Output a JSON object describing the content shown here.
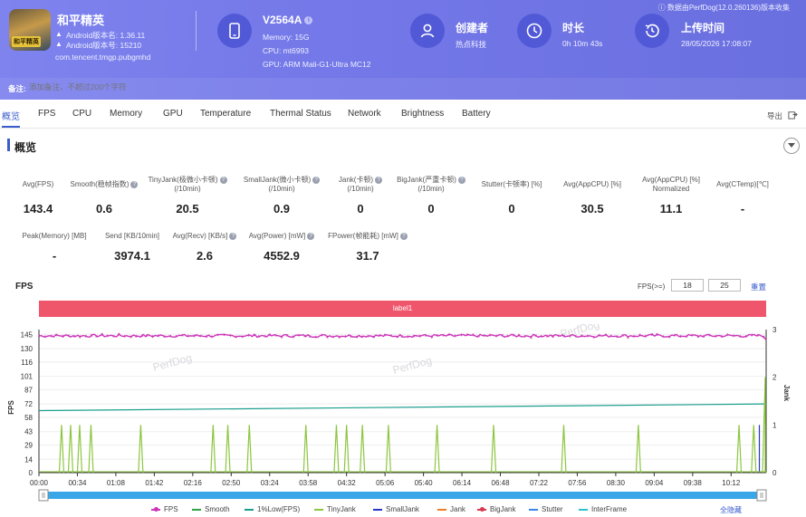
{
  "header": {
    "app_name": "和平精英",
    "android_version": "Android版本名: 1.36.11",
    "android_code": "Android版本号: 15210",
    "package": "com.tencent.tmgp.pubgmhd",
    "icon_badge": "和平精英",
    "device_name": "V2564A",
    "device_memory": "Memory: 15G",
    "device_cpu": "CPU: mt6993",
    "device_gpu": "GPU: ARM Mali-G1-Ultra MC12",
    "creator_label": "创建者",
    "creator_value": "热点科技",
    "duration_label": "时长",
    "duration_value": "0h 10m 43s",
    "upload_label": "上传时间",
    "upload_value": "28/05/2026 17:08:07",
    "data_source": "数据由PerfDog(12.0.260136)版本收集",
    "note_label": "备注:",
    "note_placeholder": "添加备注，不超过200个字符"
  },
  "tabs": [
    "概览",
    "FPS",
    "CPU",
    "Memory",
    "GPU",
    "Temperature",
    "Thermal Status",
    "Network",
    "Brightness",
    "Battery"
  ],
  "export_label": "导出",
  "overview": {
    "title": "概览",
    "row1": [
      {
        "label": "Avg(FPS)",
        "value": "143.4"
      },
      {
        "label": "Smooth(稳帧指数)",
        "value": "0.6"
      },
      {
        "label": "TinyJank(极微小卡顿)\n(/10min)",
        "value": "20.5"
      },
      {
        "label": "SmallJank(微小卡顿)\n(/10min)",
        "value": "0.9"
      },
      {
        "label": "Jank(卡顿)\n(/10min)",
        "value": "0"
      },
      {
        "label": "BigJank(严重卡顿)\n(/10min)",
        "value": "0"
      },
      {
        "label": "Stutter(卡顿率) [%]",
        "value": "0"
      },
      {
        "label": "Avg(AppCPU) [%]",
        "value": "30.5"
      },
      {
        "label": "Avg(AppCPU) [%]\nNormalized",
        "value": "11.1"
      },
      {
        "label": "Avg(CTemp)[℃]",
        "value": "-"
      }
    ],
    "row2": [
      {
        "label": "Peak(Memory) [MB]",
        "value": "-"
      },
      {
        "label": "Send [KB/10min]",
        "value": "3974.1"
      },
      {
        "label": "Avg(Recv) [KB/s]",
        "value": "2.6"
      },
      {
        "label": "Avg(Power) [mW]",
        "value": "4552.9"
      },
      {
        "label": "FPower(帧能耗) [mW]",
        "value": "31.7"
      }
    ]
  },
  "fps_chart_header": {
    "title": "FPS",
    "threshold_label": "FPS(>=)",
    "threshold_1": "18",
    "threshold_2": "25",
    "reset_label": "重置",
    "band_label": "label1"
  },
  "chart_data": {
    "type": "line",
    "title": "FPS",
    "ylabel": "FPS",
    "ylabel_right": "Jank",
    "ylim": [
      0,
      150
    ],
    "ylim_right": [
      0,
      3
    ],
    "y_ticks": [
      0,
      14,
      29,
      43,
      58,
      72,
      87,
      101,
      116,
      130,
      145
    ],
    "y_ticks_right": [
      0,
      1,
      2,
      3
    ],
    "x_ticks": [
      "00:00",
      "00:34",
      "01:08",
      "01:42",
      "02:16",
      "02:50",
      "03:24",
      "03:58",
      "04:32",
      "05:06",
      "05:40",
      "06:14",
      "06:48",
      "07:22",
      "07:56",
      "08:30",
      "09:04",
      "09:38",
      "10:12"
    ],
    "duration_seconds": 643,
    "series": [
      {
        "name": "FPS",
        "color": "#cc33b8",
        "level": 143.5,
        "end_value": 139
      },
      {
        "name": "Smooth",
        "color": "#2fa24a"
      },
      {
        "name": "1%Low(FPS)",
        "color": "#1a9e8c",
        "start": 65,
        "end": 72
      },
      {
        "name": "TinyJank",
        "color": "#8cc63f",
        "axis": "right",
        "spikes_seconds": [
          20,
          28,
          36,
          46,
          90,
          154,
          167,
          186,
          236,
          263,
          272,
          286,
          309,
          352,
          402,
          464,
          530,
          619,
          632
        ],
        "spike_height": 1,
        "end_spike": 2
      },
      {
        "name": "SmallJank",
        "color": "#2636c9",
        "axis": "right",
        "spikes_seconds": [
          637
        ],
        "spike_height": 1
      },
      {
        "name": "Jank",
        "color": "#f07c2a"
      },
      {
        "name": "BigJank",
        "color": "#d9364f"
      },
      {
        "name": "Stutter",
        "color": "#3a86e8"
      },
      {
        "name": "InterFrame",
        "color": "#2bc2c9"
      }
    ],
    "legend_placement": "bottom",
    "grid": true
  },
  "legend_hide_all": "全隐藏",
  "watermark": "PerfDog"
}
